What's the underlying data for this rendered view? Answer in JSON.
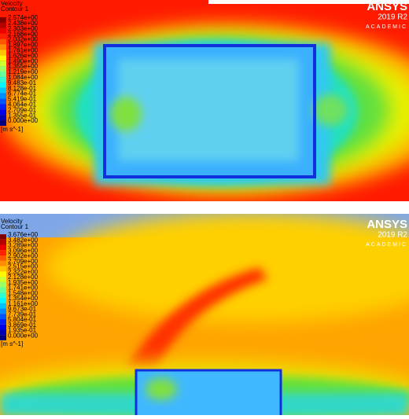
{
  "panels": [
    {
      "legend": {
        "title": "Velocity",
        "subtitle": "Contour 1",
        "labels": [
          "2.574e+00",
          "2.438e+00",
          "2.303e+00",
          "2.168e+00",
          "2.032e+00",
          "1.897e+00",
          "1.761e+00",
          "1.626e+00",
          "1.490e+00",
          "1.355e+00",
          "1.219e+00",
          "1.084e+00",
          "9.483e-01",
          "8.128e-01",
          "6.774e-01",
          "5.419e-01",
          "4.064e-01",
          "2.709e-01",
          "1.355e-01",
          "0.000e+00"
        ],
        "unit": "[m s^-1]"
      },
      "logo": {
        "brand": "ANSYS",
        "version": "2019 R2",
        "edition": "ACADEMIC"
      }
    },
    {
      "legend": {
        "title": "Velocity",
        "subtitle": "Contour 1",
        "labels": [
          "3.676e+00",
          "3.482e+00",
          "3.289e+00",
          "3.096e+00",
          "2.902e+00",
          "2.709e+00",
          "2.515e+00",
          "2.322e+00",
          "2.128e+00",
          "1.935e+00",
          "1.741e+00",
          "1.548e+00",
          "1.354e+00",
          "1.161e+00",
          "9.673e-01",
          "7.739e-01",
          "5.804e-01",
          "3.869e-01",
          "1.935e-01",
          "0.000e+00"
        ],
        "unit": "[m s^-1]"
      },
      "logo": {
        "brand": "ANSYS",
        "version": "2019 R2",
        "edition": "ACADEMIC"
      }
    }
  ]
}
